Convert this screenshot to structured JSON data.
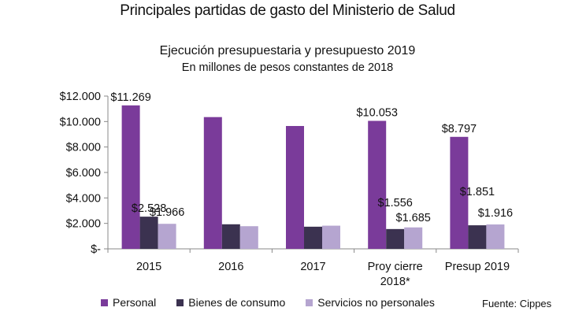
{
  "chart_data": {
    "type": "bar",
    "title": "Principales partidas de gasto del Ministerio de Salud",
    "subtitle": "Ejecución presupuestaria y presupuesto 2019",
    "subtitle2": "En millones de pesos constantes de 2018",
    "categories": [
      [
        "2015"
      ],
      [
        "2016"
      ],
      [
        "2017"
      ],
      [
        "Proy cierre",
        "2018*"
      ],
      [
        "Presup 2019"
      ]
    ],
    "series": [
      {
        "name": "Personal",
        "color": "#7a3b9a",
        "values": [
          11269,
          10350,
          9650,
          10053,
          8797
        ]
      },
      {
        "name": "Bienes de consumo",
        "color": "#3b3250",
        "values": [
          2528,
          1930,
          1740,
          1556,
          1851
        ]
      },
      {
        "name": "Servicios no personales",
        "color": "#b5a5d0",
        "values": [
          1966,
          1780,
          1820,
          1685,
          1916
        ]
      }
    ],
    "data_labels": [
      {
        "series": 0,
        "category": 0,
        "text": "$11.269"
      },
      {
        "series": 1,
        "category": 0,
        "text": "$2.528"
      },
      {
        "series": 2,
        "category": 0,
        "text": "$1.966"
      },
      {
        "series": 0,
        "category": 3,
        "text": "$10.053"
      },
      {
        "series": 1,
        "category": 3,
        "text": "$1.556"
      },
      {
        "series": 2,
        "category": 3,
        "text": "$1.685"
      },
      {
        "series": 0,
        "category": 4,
        "text": "$8.797"
      },
      {
        "series": 1,
        "category": 4,
        "text": "$1.851"
      },
      {
        "series": 2,
        "category": 4,
        "text": "$1.916"
      }
    ],
    "y_ticks": [
      {
        "value": 12000,
        "label": "$12.000"
      },
      {
        "value": 10000,
        "label": "$10.000"
      },
      {
        "value": 8000,
        "label": "$8.000"
      },
      {
        "value": 6000,
        "label": "$6.000"
      },
      {
        "value": 4000,
        "label": "$4.000"
      },
      {
        "value": 2000,
        "label": "$2.000"
      },
      {
        "value": 0,
        "label": "$-"
      }
    ],
    "ylim": [
      0,
      12000
    ],
    "grid": false,
    "legend_position": "bottom"
  },
  "source": "Fuente: Cippes"
}
